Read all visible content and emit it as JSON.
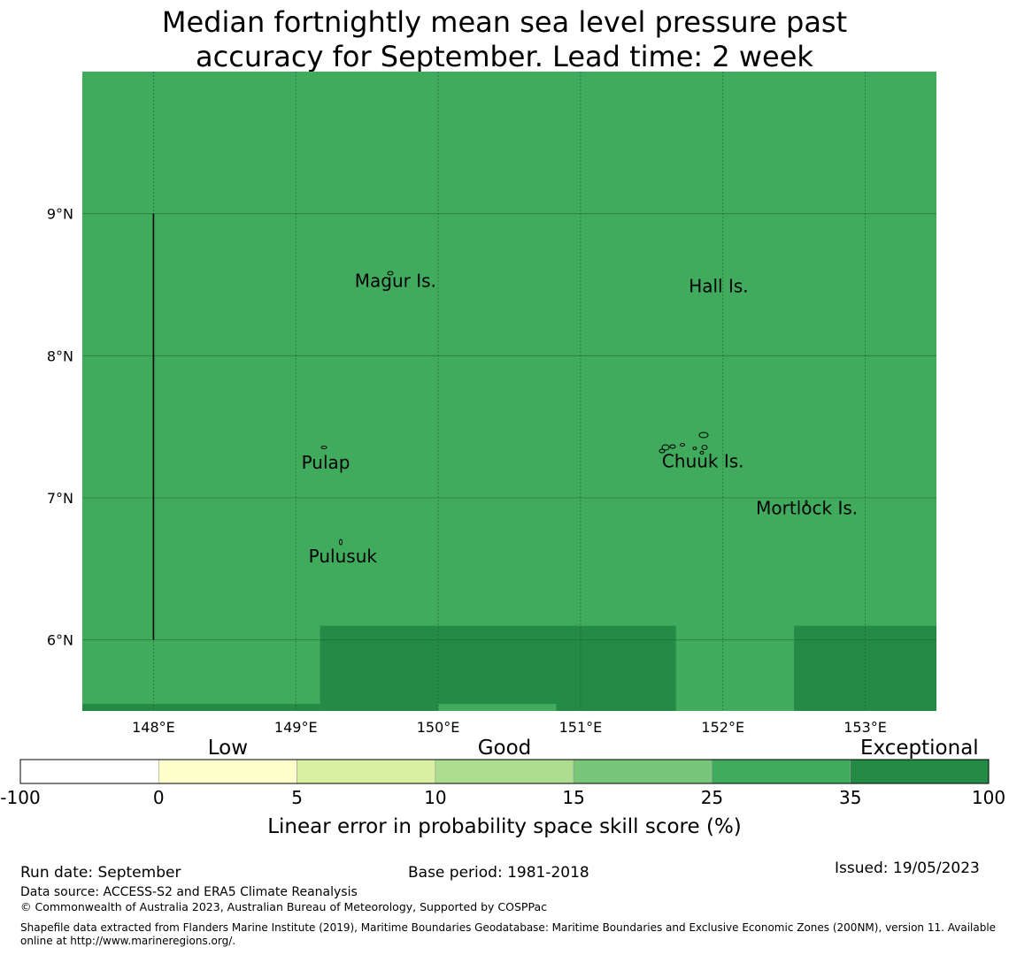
{
  "title": {
    "line1": "Median fortnightly mean sea level pressure past",
    "line2": "accuracy for September. Lead time: 2 week"
  },
  "map": {
    "lon_range": [
      147.5,
      153.5
    ],
    "lat_range": [
      5.5,
      10.0
    ],
    "lon_ticks": [
      {
        "value": 148,
        "label": "148°E"
      },
      {
        "value": 149,
        "label": "149°E"
      },
      {
        "value": 150,
        "label": "150°E"
      },
      {
        "value": 151,
        "label": "151°E"
      },
      {
        "value": 152,
        "label": "152°E"
      },
      {
        "value": 153,
        "label": "153°E"
      }
    ],
    "lat_ticks": [
      {
        "value": 9,
        "label": "9°N"
      },
      {
        "value": 8,
        "label": "8°N"
      },
      {
        "value": 7,
        "label": "7°N"
      },
      {
        "value": 6,
        "label": "6°N"
      }
    ],
    "background_color": "#41ab5d",
    "regions": [
      {
        "category": "35-100",
        "color": "#238b45",
        "lon": [
          149.17,
          151.67
        ],
        "lat": [
          5.5,
          6.1
        ]
      },
      {
        "category": "35-100",
        "color": "#238b45",
        "lon": [
          152.5,
          153.5
        ],
        "lat": [
          5.5,
          6.1
        ]
      },
      {
        "category": "35-100",
        "color": "#238b45",
        "lon": [
          147.5,
          149.17
        ],
        "lat": [
          5.5,
          5.55
        ]
      },
      {
        "category": "25-35",
        "color": "#41ab5d",
        "lon": [
          150.0,
          150.83
        ],
        "lat": [
          5.5,
          5.55
        ]
      }
    ],
    "boundary_line": {
      "lon": 148.0,
      "lat": [
        6.0,
        9.0
      ]
    },
    "places": [
      {
        "name": "Magur Is.",
        "lon": 149.7,
        "lat": 8.52
      },
      {
        "name": "Hall Is.",
        "lon": 151.97,
        "lat": 8.48
      },
      {
        "name": "Pulap",
        "lon": 149.21,
        "lat": 7.24
      },
      {
        "name": "Chuuk Is.",
        "lon": 151.86,
        "lat": 7.25
      },
      {
        "name": "Mortlock Is.",
        "lon": 152.59,
        "lat": 6.92
      },
      {
        "name": "Pulusuk",
        "lon": 149.33,
        "lat": 6.58
      }
    ]
  },
  "colorbar": {
    "title": "Linear error in probability space skill score (%)",
    "bins": [
      {
        "from": "-100",
        "to": "0",
        "color": "#ffffff"
      },
      {
        "from": "0",
        "to": "5",
        "color": "#ffffcc"
      },
      {
        "from": "5",
        "to": "10",
        "color": "#d9f0a3"
      },
      {
        "from": "10",
        "to": "15",
        "color": "#addd8e"
      },
      {
        "from": "15",
        "to": "25",
        "color": "#78c679"
      },
      {
        "from": "25",
        "to": "35",
        "color": "#41ab5d"
      },
      {
        "from": "35",
        "to": "100",
        "color": "#238b45"
      }
    ],
    "tick_labels": [
      "-100",
      "0",
      "5",
      "10",
      "15",
      "25",
      "35",
      "100"
    ],
    "categories": [
      {
        "label": "Low",
        "bin_center": 1.5
      },
      {
        "label": "Good",
        "bin_center": 3.5
      },
      {
        "label": "Exceptional",
        "bin_center": 6.5
      }
    ]
  },
  "footer": {
    "run_date": "Run date: September",
    "base_period": "Base period: 1981-2018",
    "issued": "Issued: 19/05/2023",
    "data_source": "Data source: ACCESS-S2 and ERA5 Climate Reanalysis",
    "copyright": "© Commonwealth of Australia 2023, Australian Bureau of Meteorology, Supported by COSPPac",
    "shapefile_line1": "Shapefile data extracted from Flanders Marine Institute (2019), Maritime Boundaries Geodatabase: Maritime Boundaries and Exclusive Economic Zones (200NM), version 11. Available",
    "shapefile_line2": "online at http://www.marineregions.org/."
  }
}
